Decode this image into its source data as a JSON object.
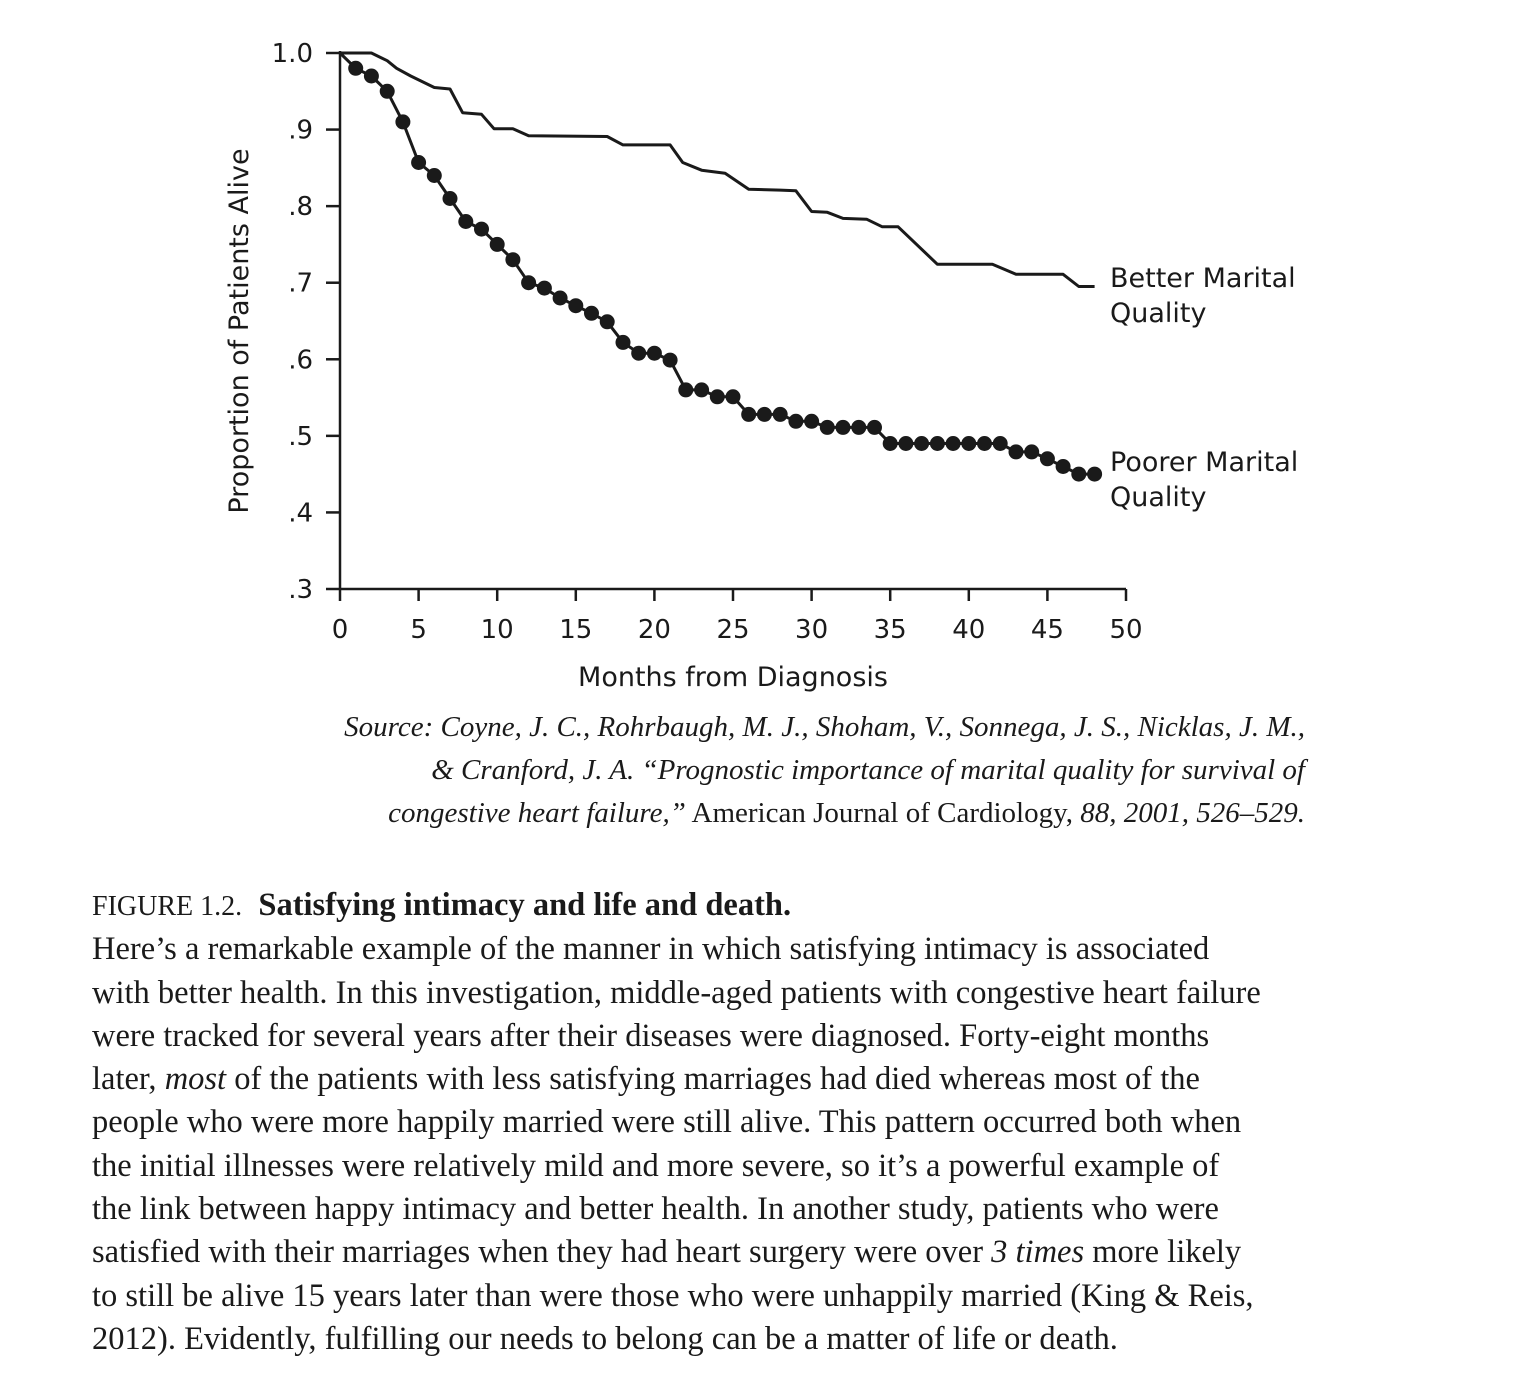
{
  "chart_data": {
    "type": "line",
    "xlabel": "Months from Diagnosis",
    "ylabel": "Proportion of Patients Alive",
    "xlim": [
      0,
      50
    ],
    "ylim": [
      0.3,
      1.0
    ],
    "x_ticks": [
      "0",
      "5",
      "10",
      "15",
      "20",
      "25",
      "30",
      "35",
      "40",
      "45",
      "50"
    ],
    "y_ticks": [
      ".3",
      ".4",
      ".5",
      ".6",
      ".7",
      ".8",
      ".9",
      "1.0"
    ],
    "grid": false,
    "series": [
      {
        "name_lines": [
          "Better Marital",
          "Quality"
        ],
        "style": "step-line",
        "points": [
          [
            0,
            1.0
          ],
          [
            2,
            1.0
          ],
          [
            3,
            0.99
          ],
          [
            3.6,
            0.98
          ],
          [
            4.5,
            0.97
          ],
          [
            6,
            0.955
          ],
          [
            7,
            0.953
          ],
          [
            7.8,
            0.922
          ],
          [
            9,
            0.92
          ],
          [
            9.8,
            0.901
          ],
          [
            11,
            0.901
          ],
          [
            12,
            0.892
          ],
          [
            17,
            0.891
          ],
          [
            18,
            0.88
          ],
          [
            21,
            0.88
          ],
          [
            21.8,
            0.857
          ],
          [
            23,
            0.847
          ],
          [
            24.5,
            0.843
          ],
          [
            26,
            0.822
          ],
          [
            28,
            0.821
          ],
          [
            29,
            0.82
          ],
          [
            30,
            0.793
          ],
          [
            31,
            0.792
          ],
          [
            32,
            0.784
          ],
          [
            33.5,
            0.783
          ],
          [
            34.5,
            0.773
          ],
          [
            35.5,
            0.773
          ],
          [
            38,
            0.724
          ],
          [
            41.5,
            0.724
          ],
          [
            43,
            0.711
          ],
          [
            46,
            0.711
          ],
          [
            47,
            0.695
          ],
          [
            48,
            0.695
          ]
        ]
      },
      {
        "name_lines": [
          "Poorer Marital",
          "Quality"
        ],
        "style": "dotted-line",
        "points": [
          [
            0,
            1.0
          ],
          [
            1,
            0.98
          ],
          [
            2,
            0.97
          ],
          [
            3,
            0.95
          ],
          [
            4,
            0.91
          ],
          [
            5,
            0.857
          ],
          [
            6,
            0.84
          ],
          [
            7,
            0.81
          ],
          [
            8,
            0.78
          ],
          [
            9,
            0.77
          ],
          [
            10,
            0.75
          ],
          [
            11,
            0.73
          ],
          [
            12,
            0.7
          ],
          [
            13,
            0.693
          ],
          [
            14,
            0.68
          ],
          [
            15,
            0.67
          ],
          [
            16,
            0.66
          ],
          [
            17,
            0.649
          ],
          [
            18,
            0.622
          ],
          [
            19,
            0.608
          ],
          [
            20,
            0.608
          ],
          [
            21,
            0.599
          ],
          [
            22,
            0.56
          ],
          [
            23,
            0.56
          ],
          [
            24,
            0.551
          ],
          [
            25,
            0.551
          ],
          [
            26,
            0.528
          ],
          [
            27,
            0.528
          ],
          [
            28,
            0.528
          ],
          [
            29,
            0.519
          ],
          [
            30,
            0.519
          ],
          [
            31,
            0.511
          ],
          [
            32,
            0.511
          ],
          [
            33,
            0.511
          ],
          [
            34,
            0.511
          ],
          [
            35,
            0.49
          ],
          [
            36,
            0.49
          ],
          [
            37,
            0.49
          ],
          [
            38,
            0.49
          ],
          [
            39,
            0.49
          ],
          [
            40,
            0.49
          ],
          [
            41,
            0.49
          ],
          [
            42,
            0.49
          ],
          [
            43,
            0.479
          ],
          [
            44,
            0.479
          ],
          [
            45,
            0.47
          ],
          [
            46,
            0.46
          ],
          [
            47,
            0.45
          ],
          [
            48,
            0.45
          ]
        ]
      }
    ]
  },
  "source": {
    "line1": "Source: Coyne, J. C., Rohrbaugh, M. J., Shoham, V., Sonnega, J. S., Nicklas, J. M.,",
    "line2": "& Cranford, J. A. “Prognostic importance of marital quality for survival of",
    "line3_a": "congestive heart failure,”",
    "line3_b": " American Journal of Cardiology, ",
    "line3_c": "88, 2001, 526–529."
  },
  "caption": {
    "figure_number": "FIGURE 1.2.",
    "title": "Satisfying intimacy and life and death.",
    "lines": [
      "Here’s a remarkable example of the manner in which satisfying intimacy is associated",
      "with better health. In this investigation, middle-aged patients with congestive heart failure",
      "were tracked for several years after their diseases were diagnosed. Forty-eight months"
    ],
    "line4_a": "later, ",
    "line4_em": "most",
    "line4_b": " of the patients with less satisfying marriages had died whereas most of the",
    "lines_mid": [
      "people who were more happily married were still alive. This pattern occurred both when",
      "the initial illnesses were relatively mild and more severe, so it’s a powerful example of",
      "the link between happy intimacy and better health. In another study, patients who were"
    ],
    "line8_a": "satisfied with their marriages when they had heart surgery were over ",
    "line8_em": "3 times",
    "line8_b": " more likely",
    "lines_end": [
      "to still be alive 15 years later than were those who were unhappily married (King & Reis,",
      "2012). Evidently, fulfilling our needs to belong can be a matter of life or death."
    ]
  }
}
